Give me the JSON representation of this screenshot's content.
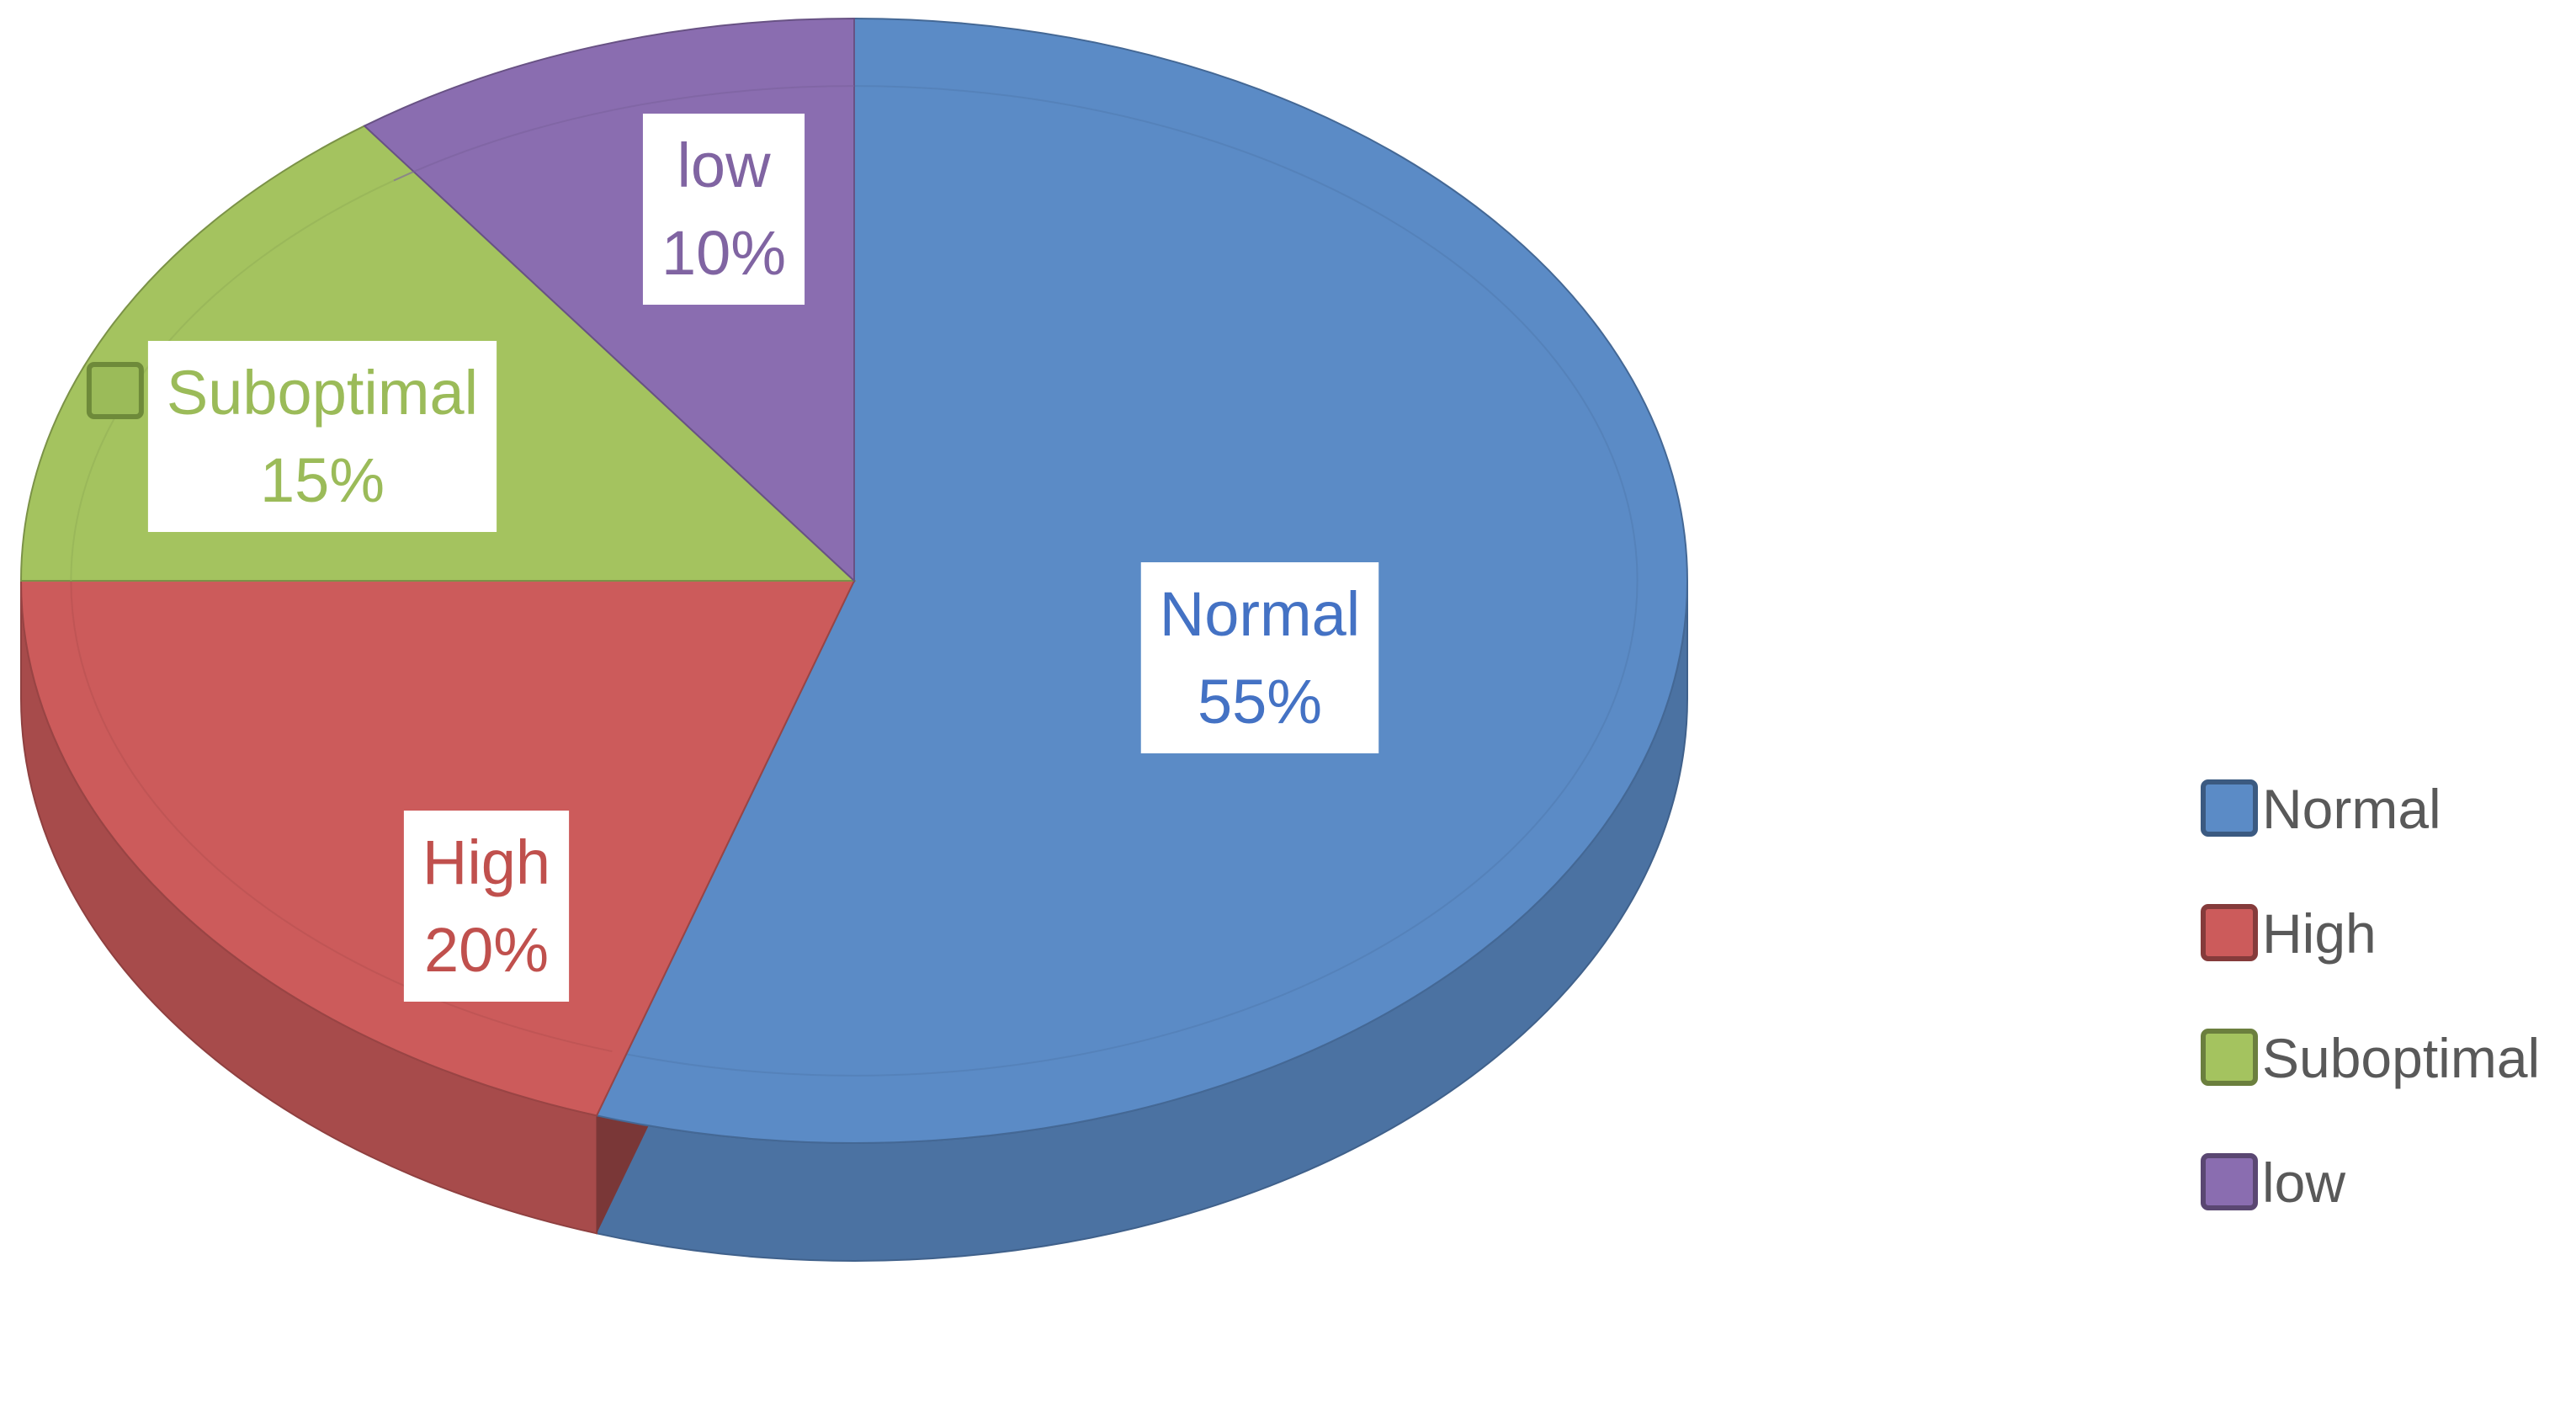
{
  "chart_data": {
    "type": "pie",
    "style": "3d",
    "title": "",
    "slices": [
      {
        "label": "Normal",
        "value": 55,
        "pct_label": "55%",
        "color": "#5B8BC6",
        "text_color": "#4472C4"
      },
      {
        "label": "High",
        "value": 20,
        "pct_label": "20%",
        "color": "#CC5B5B",
        "text_color": "#C0504D"
      },
      {
        "label": "Suboptimal",
        "value": 15,
        "pct_label": "15%",
        "color": "#A4C35F",
        "text_color": "#9BBB59"
      },
      {
        "label": "low",
        "value": 10,
        "pct_label": "10%",
        "color": "#8A6DB0",
        "text_color": "#8064A2"
      }
    ],
    "legend": {
      "position": "right",
      "entries": [
        "Normal",
        "High",
        "Suboptimal",
        "low"
      ]
    }
  }
}
